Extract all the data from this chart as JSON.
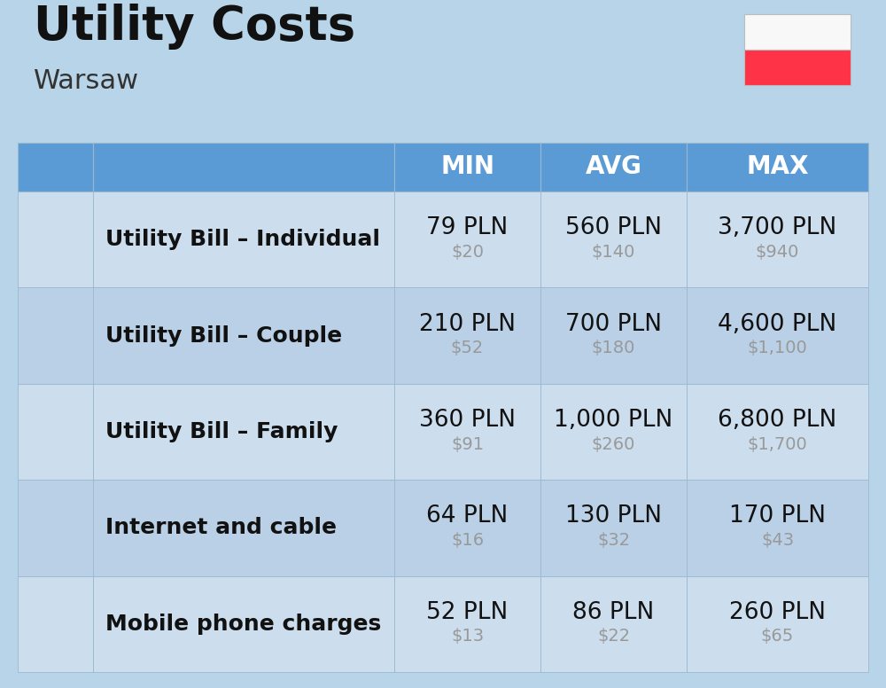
{
  "title": "Utility Costs",
  "subtitle": "Warsaw",
  "background_color": "#b8d4e8",
  "header_bg_color": "#5b9bd5",
  "header_text_color": "#ffffff",
  "row_bg_color_1": "#ccdded",
  "row_bg_color_2": "#bad0e6",
  "border_color": "#9ab8d0",
  "headers": [
    "MIN",
    "AVG",
    "MAX"
  ],
  "rows": [
    {
      "label": "Utility Bill – Individual",
      "min_pln": "79 PLN",
      "min_usd": "$20",
      "avg_pln": "560 PLN",
      "avg_usd": "$140",
      "max_pln": "3,700 PLN",
      "max_usd": "$940"
    },
    {
      "label": "Utility Bill – Couple",
      "min_pln": "210 PLN",
      "min_usd": "$52",
      "avg_pln": "700 PLN",
      "avg_usd": "$180",
      "max_pln": "4,600 PLN",
      "max_usd": "$1,100"
    },
    {
      "label": "Utility Bill – Family",
      "min_pln": "360 PLN",
      "min_usd": "$91",
      "avg_pln": "1,000 PLN",
      "avg_usd": "$260",
      "max_pln": "6,800 PLN",
      "max_usd": "$1,700"
    },
    {
      "label": "Internet and cable",
      "min_pln": "64 PLN",
      "min_usd": "$16",
      "avg_pln": "130 PLN",
      "avg_usd": "$32",
      "max_pln": "170 PLN",
      "max_usd": "$43"
    },
    {
      "label": "Mobile phone charges",
      "min_pln": "52 PLN",
      "min_usd": "$13",
      "avg_pln": "86 PLN",
      "avg_usd": "$22",
      "max_pln": "260 PLN",
      "max_usd": "$65"
    }
  ],
  "title_fontsize": 38,
  "subtitle_fontsize": 22,
  "header_fontsize": 20,
  "label_fontsize": 18,
  "value_fontsize": 19,
  "usd_fontsize": 14,
  "flag_white": "#f8f8f8",
  "flag_red": "#ff3348",
  "title_color": "#111111",
  "subtitle_color": "#333333",
  "label_color": "#111111",
  "value_color": "#111111",
  "usd_color": "#999999"
}
